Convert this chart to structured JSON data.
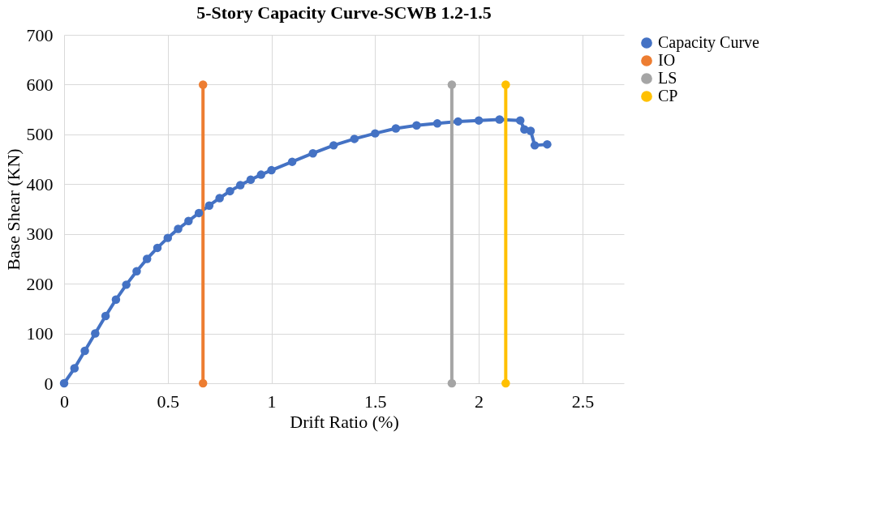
{
  "chart_data": {
    "type": "line",
    "title": "5-Story Capacity Curve-SCWB 1.2-1.5",
    "xlabel": "Drift Ratio (%)",
    "ylabel": "Base Shear (KN)",
    "xlim": [
      0,
      2.7
    ],
    "xticks": [
      0,
      0.5,
      1,
      1.5,
      2,
      2.5
    ],
    "ylim": [
      0,
      700
    ],
    "yticks": [
      0,
      100,
      200,
      300,
      400,
      500,
      600,
      700
    ],
    "grid": true,
    "legend": "right",
    "marker": "circle",
    "line_style": "solid",
    "series": [
      {
        "name": "Capacity Curve",
        "color": "#4472c4",
        "x": [
          0,
          0.05,
          0.1,
          0.15,
          0.2,
          0.25,
          0.3,
          0.35,
          0.4,
          0.45,
          0.5,
          0.55,
          0.6,
          0.65,
          0.7,
          0.75,
          0.8,
          0.85,
          0.9,
          0.95,
          1.0,
          1.1,
          1.2,
          1.3,
          1.4,
          1.5,
          1.6,
          1.7,
          1.8,
          1.9,
          2.0,
          2.1,
          2.2,
          2.22,
          2.25,
          2.27,
          2.33
        ],
        "values": [
          0,
          30,
          65,
          100,
          135,
          168,
          198,
          225,
          250,
          272,
          292,
          310,
          326,
          342,
          357,
          372,
          386,
          398,
          409,
          419,
          428,
          445,
          462,
          478,
          491,
          502,
          512,
          518,
          522,
          526,
          528,
          530,
          528,
          510,
          507,
          478,
          480
        ]
      },
      {
        "name": "IO",
        "color": "#ed7d31",
        "x": [
          0.67,
          0.67
        ],
        "values": [
          0,
          600
        ]
      },
      {
        "name": "LS",
        "color": "#a5a5a5",
        "x": [
          1.87,
          1.87
        ],
        "values": [
          0,
          600
        ]
      },
      {
        "name": "CP",
        "color": "#ffc000",
        "x": [
          2.13,
          2.13
        ],
        "values": [
          0,
          600
        ]
      }
    ]
  }
}
